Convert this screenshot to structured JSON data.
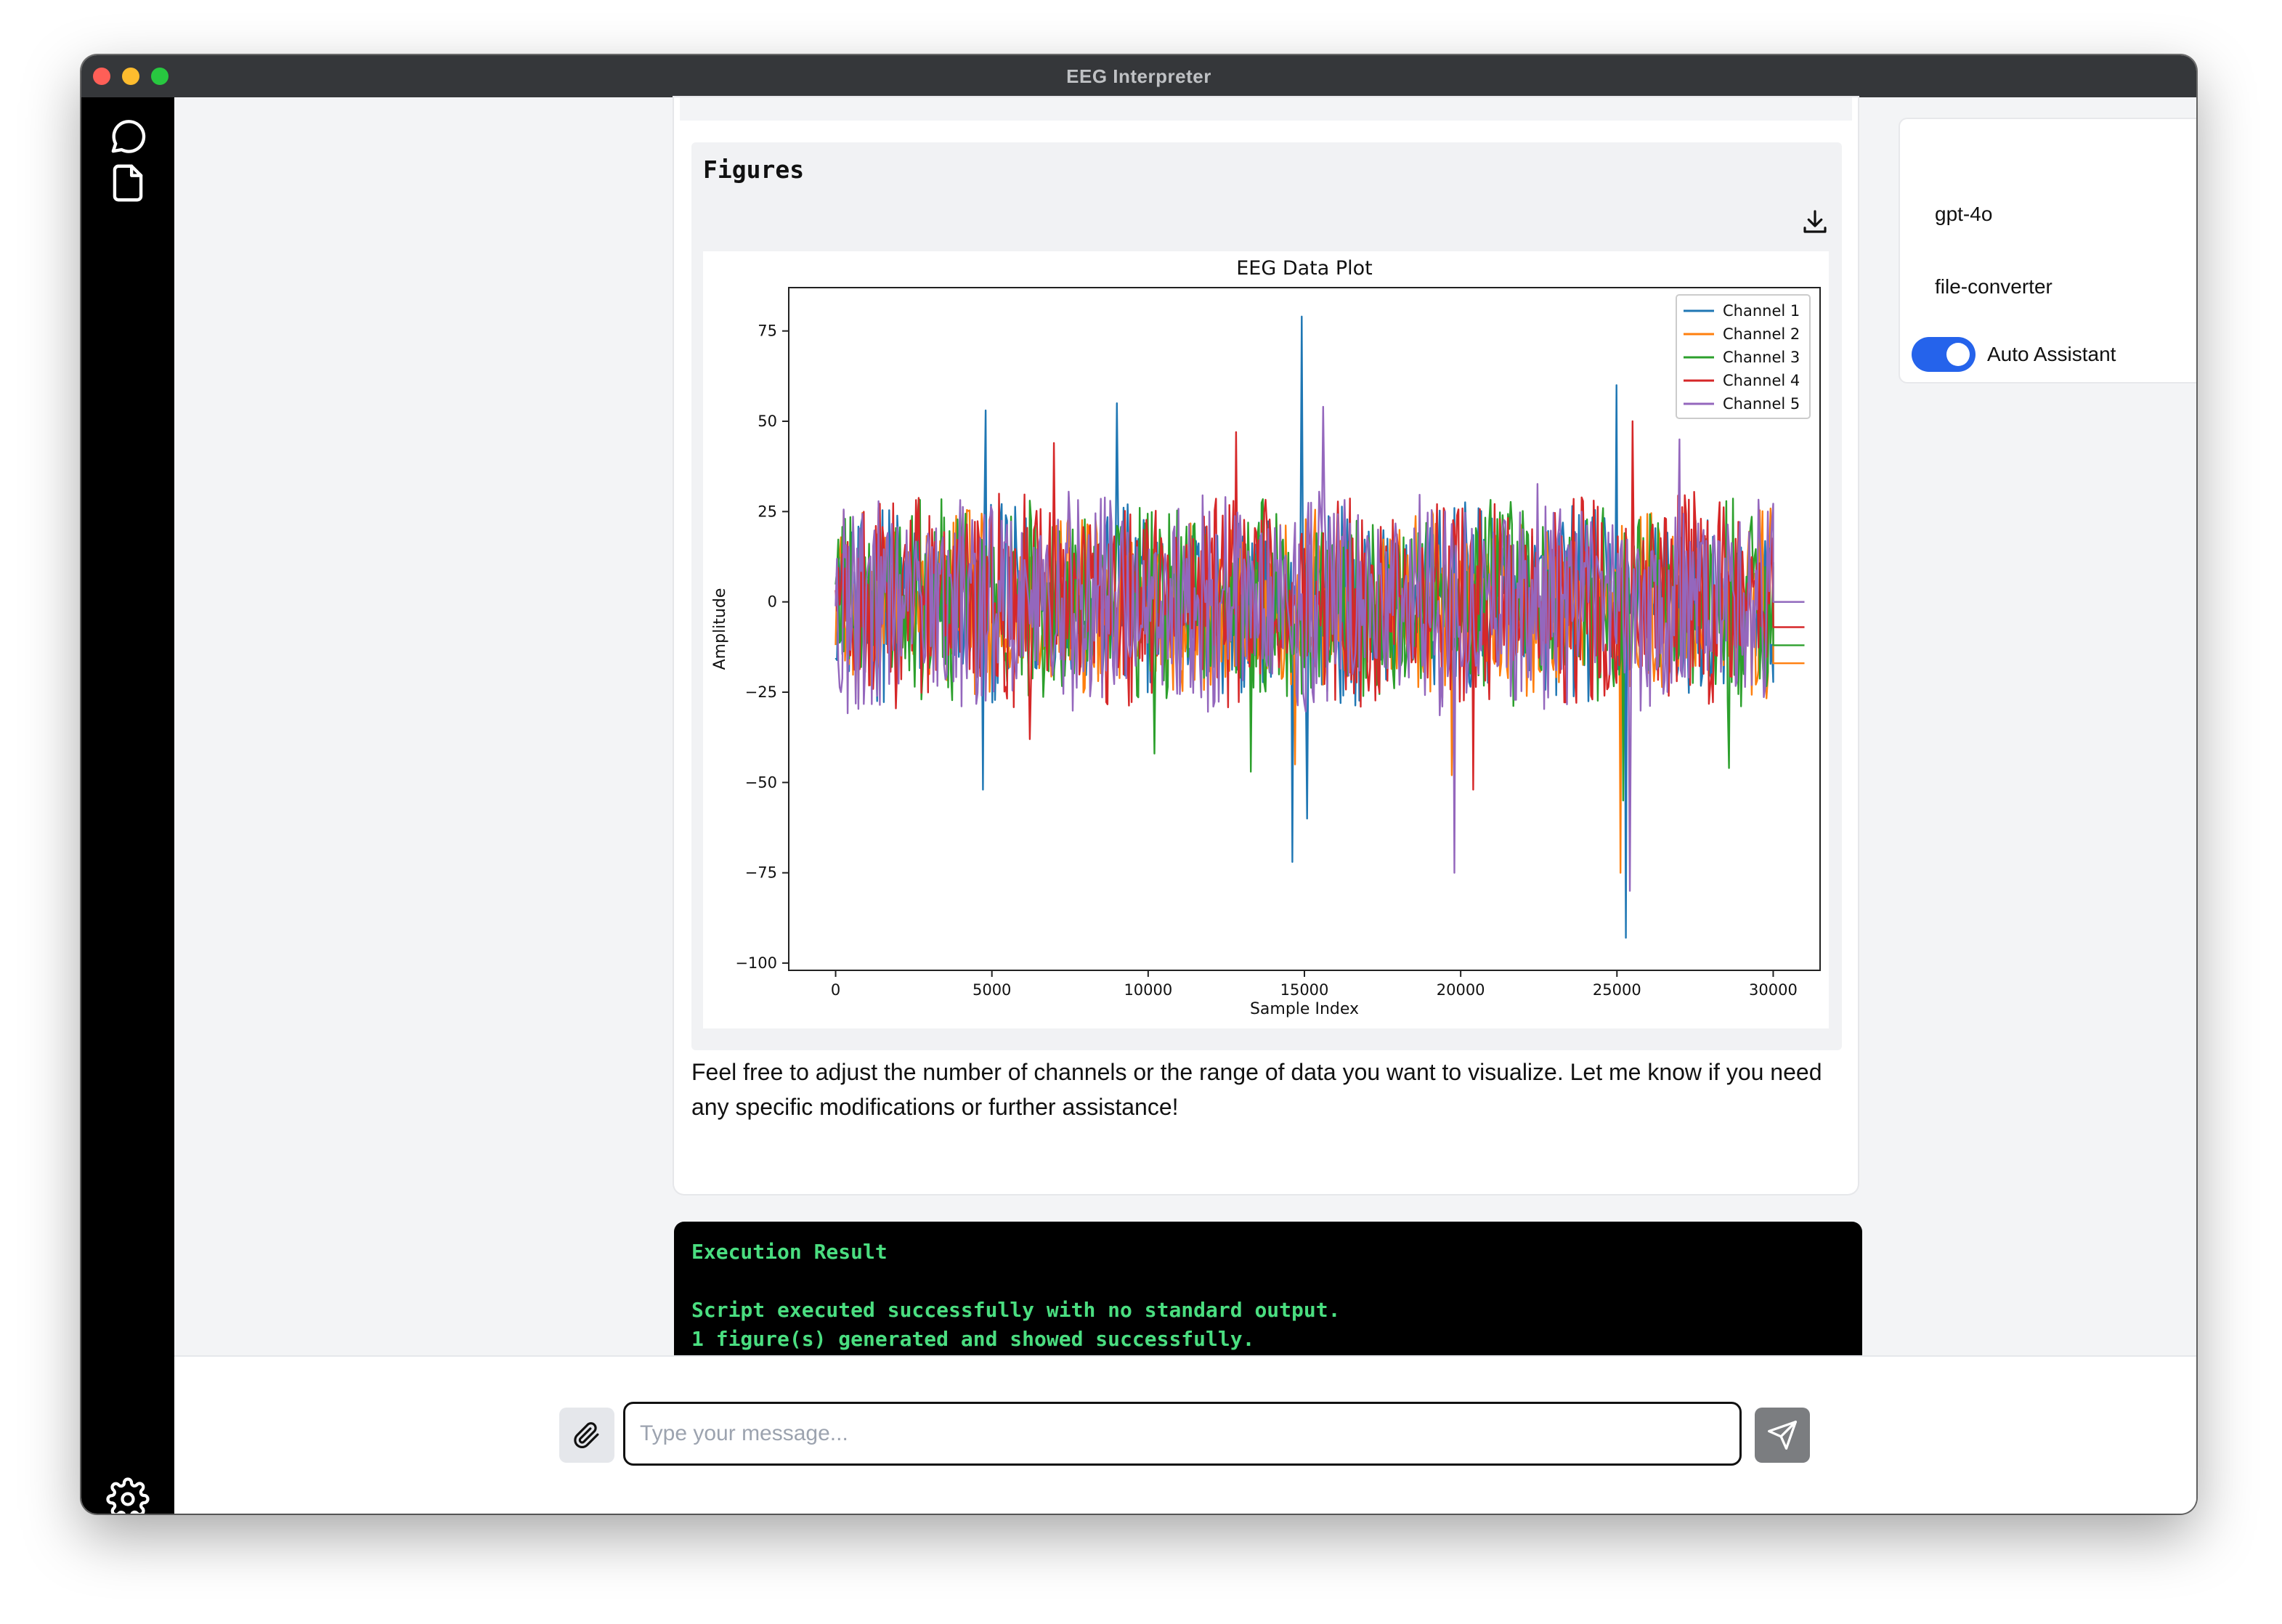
{
  "window": {
    "title": "EEG Interpreter",
    "traffic_lights": [
      "#ff5f57",
      "#febc2e",
      "#28c840"
    ]
  },
  "sidebar": {
    "top_items": [
      {
        "name": "chat",
        "icon": "chat-bubble-icon"
      },
      {
        "name": "files",
        "icon": "document-icon"
      }
    ],
    "bottom_item": {
      "name": "settings",
      "icon": "gear-icon"
    }
  },
  "message": {
    "figures_title": "Figures",
    "download_icon": "download-icon",
    "text": "Feel free to adjust the number of channels or the range of data you want to visualize. Let me know if you need any specific modifications or further assistance!"
  },
  "execution_result": {
    "title": "Execution Result",
    "lines": [
      "Script executed successfully with no standard output.",
      "1 figure(s) generated and showed successfully."
    ],
    "color": "#4ade80"
  },
  "settings_panel": {
    "model": "gpt-4o",
    "assistant": "file-converter",
    "auto_assistant_label": "Auto Assistant",
    "auto_assistant_on": true,
    "toggle_color": "#2563eb"
  },
  "composer": {
    "placeholder": "Type your message...",
    "attach_icon": "paperclip-icon",
    "send_icon": "send-icon"
  },
  "chart_data": {
    "type": "line",
    "title": "EEG Data Plot",
    "xlabel": "Sample Index",
    "ylabel": "Amplitude",
    "xlim": [
      -1500,
      31500
    ],
    "ylim": [
      -102,
      87
    ],
    "xticks": [
      0,
      5000,
      10000,
      15000,
      20000,
      25000,
      30000
    ],
    "yticks": [
      75,
      50,
      25,
      0,
      -25,
      -50,
      -75,
      -100
    ],
    "ytick_labels": [
      "75",
      "50",
      "25",
      "0",
      "−25",
      "−50",
      "−75",
      "−100"
    ],
    "legend_position": "top-right",
    "grid": false,
    "series": [
      {
        "name": "Channel 1",
        "color": "#1f77b4",
        "range": [
          -29,
          28
        ],
        "tail_value": 0,
        "spikes": [
          [
            4800,
            53
          ],
          [
            4700,
            -52
          ],
          [
            9000,
            55
          ],
          [
            14900,
            79
          ],
          [
            14600,
            -72
          ],
          [
            15100,
            -60
          ],
          [
            25000,
            60
          ],
          [
            25300,
            -93
          ]
        ]
      },
      {
        "name": "Channel 2",
        "color": "#ff7f0e",
        "range": [
          -27,
          26
        ],
        "tail_value": -17,
        "spikes": [
          [
            14700,
            -45
          ],
          [
            25100,
            -75
          ],
          [
            19700,
            -48
          ]
        ]
      },
      {
        "name": "Channel 3",
        "color": "#2ca02c",
        "range": [
          -30,
          30
        ],
        "tail_value": -12,
        "spikes": [
          [
            10200,
            -42
          ],
          [
            13300,
            -47
          ],
          [
            28600,
            -46
          ],
          [
            25200,
            -55
          ]
        ]
      },
      {
        "name": "Channel 4",
        "color": "#d62728",
        "range": [
          -30,
          32
        ],
        "tail_value": -7,
        "spikes": [
          [
            7000,
            44
          ],
          [
            12800,
            47
          ],
          [
            20400,
            -52
          ],
          [
            25500,
            50
          ],
          [
            6200,
            -38
          ]
        ]
      },
      {
        "name": "Channel 5",
        "color": "#9467bd",
        "range": [
          -32,
          33
        ],
        "tail_value": 0,
        "spikes": [
          [
            19800,
            -75
          ],
          [
            15600,
            54
          ],
          [
            27000,
            45
          ],
          [
            25400,
            -80
          ]
        ]
      }
    ],
    "x_max": 31000,
    "signal_end": 30000
  }
}
